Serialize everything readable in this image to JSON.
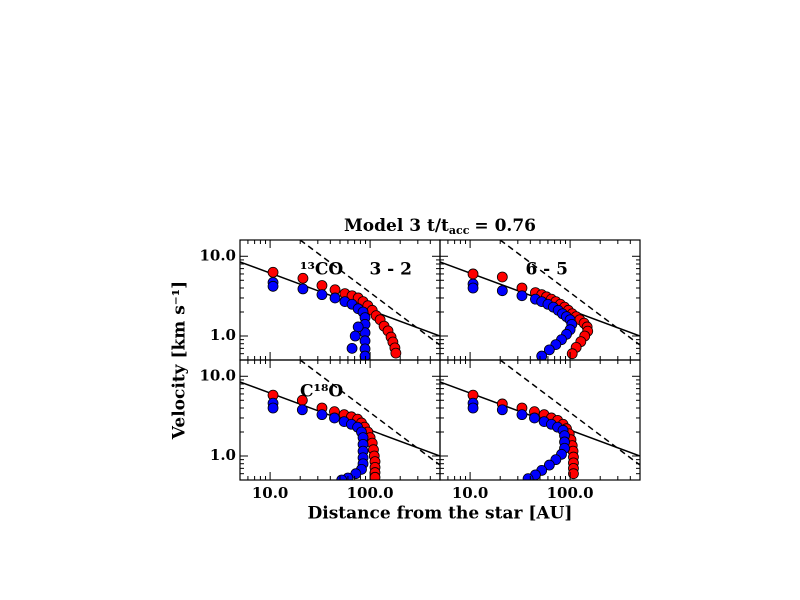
{
  "figure": {
    "title": "Model 3 t/t",
    "title_subscript": "acc",
    "title_suffix": "= 0.76",
    "xlabel": "Distance from the star [AU]",
    "ylabel": "Velocity [km s⁻¹]"
  },
  "chart_data": [
    {
      "type": "scatter",
      "label": "¹³CO",
      "transition": "3 - 2",
      "log_x": true,
      "log_y": true,
      "xlim": [
        5,
        500
      ],
      "ylim": [
        0.5,
        16
      ],
      "xticks": [
        {
          "value": 10,
          "label": "10.0"
        },
        {
          "value": 100,
          "label": "100.0"
        }
      ],
      "yticks": [
        {
          "value": 1,
          "label": "1.0"
        },
        {
          "value": 10,
          "label": "10.0"
        }
      ],
      "xminorticks": [
        6,
        7,
        8,
        9,
        20,
        30,
        40,
        50,
        60,
        70,
        80,
        90,
        200,
        300,
        400
      ],
      "yminorticks": [
        0.6,
        0.7,
        0.8,
        0.9,
        2,
        3,
        4,
        5,
        6,
        7,
        8,
        9
      ],
      "xticklabels": false,
      "yticklabels": true,
      "reference_lines": [
        {
          "style": "solid",
          "x": [
            5,
            500
          ],
          "values": [
            8.5,
            1.0
          ]
        },
        {
          "style": "dashed",
          "x": [
            20,
            500
          ],
          "values": [
            16,
            0.77
          ]
        }
      ],
      "series": [
        {
          "color": "#ff0000",
          "x": [
            10.7,
            21.3,
            33,
            44.6,
            56,
            66,
            76,
            85,
            95,
            105,
            115,
            126,
            138,
            151,
            162,
            169,
            177,
            181
          ],
          "values": [
            6.3,
            5.3,
            4.3,
            3.8,
            3.4,
            3.2,
            3.0,
            2.7,
            2.4,
            2.1,
            1.8,
            1.6,
            1.33,
            1.16,
            0.97,
            0.84,
            0.71,
            0.61
          ]
        },
        {
          "color": "#0000ff",
          "x": [
            10.7,
            10.7,
            21.3,
            33,
            44.6,
            56,
            66,
            76,
            85,
            89,
            89,
            89,
            89,
            89,
            89,
            76,
            71,
            66
          ],
          "values": [
            4.7,
            4.2,
            3.9,
            3.3,
            3.0,
            2.7,
            2.5,
            2.2,
            2.0,
            1.7,
            1.4,
            1.1,
            0.87,
            0.69,
            0.56,
            1.3,
            1.0,
            0.7
          ]
        }
      ]
    },
    {
      "type": "scatter",
      "transition": "6 - 5",
      "log_x": true,
      "log_y": true,
      "xlim": [
        5,
        500
      ],
      "ylim": [
        0.5,
        16
      ],
      "xticks": [
        {
          "value": 10,
          "label": "10.0"
        },
        {
          "value": 100,
          "label": "100.0"
        }
      ],
      "yticks": [
        {
          "value": 1,
          "label": "1.0"
        },
        {
          "value": 10,
          "label": "10.0"
        }
      ],
      "xminorticks": [
        6,
        7,
        8,
        9,
        20,
        30,
        40,
        50,
        60,
        70,
        80,
        90,
        200,
        300,
        400
      ],
      "yminorticks": [
        0.6,
        0.7,
        0.8,
        0.9,
        2,
        3,
        4,
        5,
        6,
        7,
        8,
        9
      ],
      "xticklabels": false,
      "yticklabels": false,
      "reference_lines": [
        {
          "style": "solid",
          "x": [
            5,
            500
          ],
          "values": [
            8.5,
            1.0
          ]
        },
        {
          "style": "dashed",
          "x": [
            20,
            500
          ],
          "values": [
            16,
            0.77
          ]
        }
      ],
      "series": [
        {
          "color": "#ff0000",
          "x": [
            10.7,
            21,
            33,
            45,
            52,
            58,
            65,
            72,
            80,
            88,
            96,
            105,
            115,
            125,
            138,
            148,
            150,
            140,
            128,
            115,
            105
          ],
          "values": [
            6.0,
            5.5,
            4.0,
            3.5,
            3.3,
            3.1,
            2.9,
            2.7,
            2.5,
            2.3,
            2.1,
            1.9,
            1.75,
            1.6,
            1.45,
            1.3,
            1.15,
            1.0,
            0.85,
            0.72,
            0.6
          ]
        },
        {
          "color": "#0000ff",
          "x": [
            10.7,
            10.7,
            21,
            33,
            45,
            52,
            60,
            68,
            76,
            84,
            92,
            100,
            104,
            100,
            92,
            82,
            72,
            62,
            52
          ],
          "values": [
            4.5,
            4.0,
            3.7,
            3.2,
            2.9,
            2.7,
            2.5,
            2.3,
            2.1,
            1.9,
            1.75,
            1.6,
            1.4,
            1.2,
            1.05,
            0.9,
            0.78,
            0.67,
            0.56
          ]
        }
      ]
    },
    {
      "type": "scatter",
      "label": "C¹⁸O",
      "log_x": true,
      "log_y": true,
      "xlim": [
        5,
        500
      ],
      "ylim": [
        0.5,
        16
      ],
      "xticks": [
        {
          "value": 10,
          "label": "10.0"
        },
        {
          "value": 100,
          "label": "100.0"
        }
      ],
      "yticks": [
        {
          "value": 1,
          "label": "1.0"
        },
        {
          "value": 10,
          "label": "10.0"
        }
      ],
      "xminorticks": [
        6,
        7,
        8,
        9,
        20,
        30,
        40,
        50,
        60,
        70,
        80,
        90,
        200,
        300,
        400
      ],
      "yminorticks": [
        0.6,
        0.7,
        0.8,
        0.9,
        2,
        3,
        4,
        5,
        6,
        7,
        8,
        9
      ],
      "xticklabels": true,
      "yticklabels": true,
      "reference_lines": [
        {
          "style": "solid",
          "x": [
            5,
            500
          ],
          "values": [
            8.5,
            1.0
          ]
        },
        {
          "style": "dashed",
          "x": [
            20,
            500
          ],
          "values": [
            16,
            0.77
          ]
        }
      ],
      "series": [
        {
          "color": "#ff0000",
          "x": [
            10.7,
            21,
            33,
            44,
            55,
            65,
            75,
            82,
            88,
            95,
            100,
            105,
            108,
            110,
            112,
            112,
            112,
            112
          ],
          "values": [
            5.8,
            5.0,
            4.0,
            3.6,
            3.3,
            3.1,
            2.9,
            2.6,
            2.3,
            2.0,
            1.7,
            1.45,
            1.2,
            1.0,
            0.85,
            0.72,
            0.62,
            0.54
          ]
        },
        {
          "color": "#0000ff",
          "x": [
            10.7,
            10.7,
            21,
            33,
            44,
            55,
            65,
            75,
            82,
            85,
            85,
            85,
            85,
            85,
            82,
            72,
            60,
            52
          ],
          "values": [
            4.6,
            4.0,
            3.8,
            3.3,
            3.0,
            2.7,
            2.5,
            2.3,
            2.0,
            1.7,
            1.4,
            1.15,
            0.95,
            0.8,
            0.68,
            0.6,
            0.53,
            0.5
          ]
        }
      ]
    },
    {
      "type": "scatter",
      "log_x": true,
      "log_y": true,
      "xlim": [
        5,
        500
      ],
      "ylim": [
        0.5,
        16
      ],
      "xticks": [
        {
          "value": 10,
          "label": "10.0"
        },
        {
          "value": 100,
          "label": "100.0"
        }
      ],
      "yticks": [
        {
          "value": 1,
          "label": "1.0"
        },
        {
          "value": 10,
          "label": "10.0"
        }
      ],
      "xminorticks": [
        6,
        7,
        8,
        9,
        20,
        30,
        40,
        50,
        60,
        70,
        80,
        90,
        200,
        300,
        400
      ],
      "yminorticks": [
        0.6,
        0.7,
        0.8,
        0.9,
        2,
        3,
        4,
        5,
        6,
        7,
        8,
        9
      ],
      "xticklabels": true,
      "yticklabels": false,
      "reference_lines": [
        {
          "style": "solid",
          "x": [
            5,
            500
          ],
          "values": [
            8.5,
            1.0
          ]
        },
        {
          "style": "dashed",
          "x": [
            20,
            500
          ],
          "values": [
            16,
            0.77
          ]
        }
      ],
      "series": [
        {
          "color": "#ff0000",
          "x": [
            10.7,
            21,
            33,
            44,
            55,
            65,
            75,
            85,
            92,
            98,
            102,
            105,
            107,
            108,
            108,
            108,
            108
          ],
          "values": [
            5.8,
            4.5,
            4.0,
            3.6,
            3.3,
            3.0,
            2.8,
            2.5,
            2.2,
            1.9,
            1.6,
            1.35,
            1.15,
            0.97,
            0.82,
            0.7,
            0.6
          ]
        },
        {
          "color": "#0000ff",
          "x": [
            10.7,
            10.7,
            21,
            33,
            44,
            55,
            65,
            75,
            85,
            88,
            88,
            88,
            82,
            72,
            62,
            52,
            45,
            38
          ],
          "values": [
            4.6,
            4.0,
            3.8,
            3.3,
            3.0,
            2.7,
            2.5,
            2.3,
            2.1,
            1.8,
            1.5,
            1.25,
            1.05,
            0.9,
            0.77,
            0.66,
            0.58,
            0.52
          ]
        }
      ]
    }
  ]
}
